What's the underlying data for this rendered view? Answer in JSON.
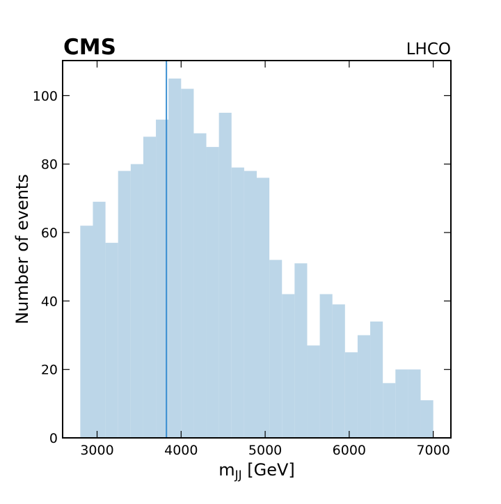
{
  "chart_data": {
    "type": "histogram",
    "title": "CMS",
    "subtitle": "LHCO",
    "xlabel": [
      "m",
      "JJ",
      " [GeV]"
    ],
    "ylabel": "Number of events",
    "bins": [
      2800,
      2950,
      3100,
      3250,
      3400,
      3550,
      3700,
      3850,
      4000,
      4150,
      4300,
      4450,
      4600,
      4750,
      4900,
      5050,
      5200,
      5350,
      5500,
      5650,
      5800,
      5950,
      6100,
      6250,
      6400,
      6550,
      6700,
      6850,
      7000
    ],
    "values": [
      62,
      69,
      57,
      78,
      80,
      88,
      93,
      105,
      102,
      89,
      85,
      95,
      79,
      78,
      76,
      52,
      42,
      51,
      27,
      42,
      39,
      25,
      30,
      34,
      16,
      20,
      20,
      11
    ],
    "color": "#bcd6e8",
    "vline": 3825,
    "vline_color": "#3a8fd1",
    "xlim": [
      2590,
      7210
    ],
    "xticks": [
      3000,
      4000,
      5000,
      6000,
      7000
    ],
    "ylim": [
      0,
      110.25
    ],
    "yticks": [
      0,
      20,
      40,
      60,
      80,
      100
    ]
  }
}
